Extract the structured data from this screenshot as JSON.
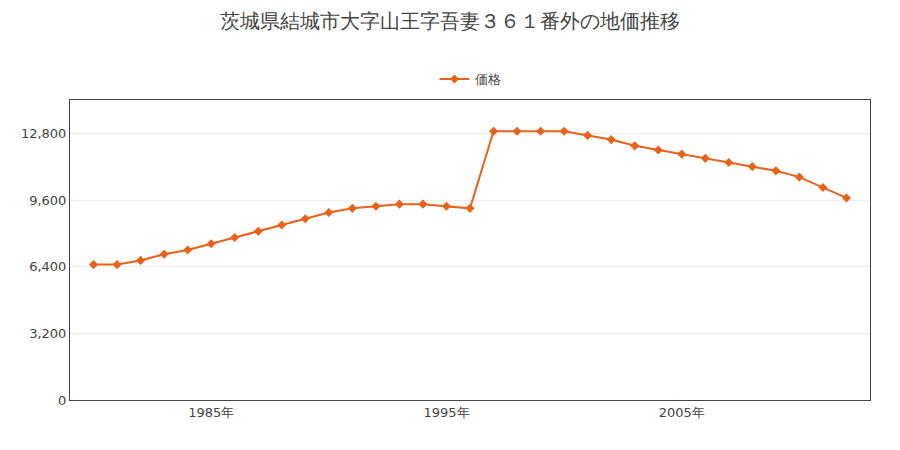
{
  "chart_data": {
    "type": "line",
    "title": "茨城県結城市大字山王字吾妻３６１番外の地価推移",
    "x": [
      1980,
      1981,
      1982,
      1983,
      1984,
      1985,
      1986,
      1987,
      1988,
      1989,
      1990,
      1991,
      1992,
      1993,
      1994,
      1995,
      1996,
      1997,
      1998,
      1999,
      2000,
      2001,
      2002,
      2003,
      2004,
      2005,
      2006,
      2007,
      2008,
      2009,
      2010,
      2011,
      2012
    ],
    "series": [
      {
        "name": "価格",
        "color": "#e8621a",
        "marker": "diamond",
        "line_style": "solid",
        "values": [
          6500,
          6500,
          6700,
          7000,
          7200,
          7500,
          7800,
          8100,
          8400,
          8700,
          9000,
          9200,
          9300,
          9400,
          9400,
          9300,
          9200,
          12900,
          12900,
          12900,
          12900,
          12700,
          12500,
          12200,
          12000,
          11800,
          11600,
          11400,
          11200,
          11000,
          10700,
          10200,
          9700
        ]
      }
    ],
    "xlim": [
      1979,
      2013
    ],
    "xticks": [
      {
        "value": 1985,
        "label": "1985年"
      },
      {
        "value": 1995,
        "label": "1995年"
      },
      {
        "value": 2005,
        "label": "2005年"
      }
    ],
    "ylim": [
      0,
      14400
    ],
    "yticks": [
      0,
      {
        "value": 3200,
        "label": "3,200"
      },
      {
        "value": 6400,
        "label": "6,400"
      },
      {
        "value": 9600,
        "label": "9,600"
      },
      {
        "value": 12800,
        "label": "12,800"
      }
    ],
    "grid": true,
    "legend": "top"
  }
}
